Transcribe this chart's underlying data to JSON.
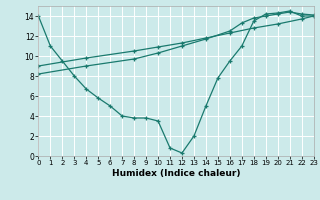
{
  "xlabel": "Humidex (Indice chaleur)",
  "xlim": [
    0,
    23
  ],
  "ylim": [
    0,
    15
  ],
  "xticks": [
    0,
    1,
    2,
    3,
    4,
    5,
    6,
    7,
    8,
    9,
    10,
    11,
    12,
    13,
    14,
    15,
    16,
    17,
    18,
    19,
    20,
    21,
    22,
    23
  ],
  "yticks": [
    0,
    2,
    4,
    6,
    8,
    10,
    12,
    14
  ],
  "bg_color": "#cceaea",
  "line_color": "#1a7a6e",
  "grid_color": "#ffffff",
  "line1_x": [
    0,
    1,
    2,
    3,
    4,
    5,
    6,
    7,
    8,
    9,
    10,
    11,
    12,
    13,
    14,
    15,
    16,
    17,
    18,
    19,
    20,
    21,
    22,
    23
  ],
  "line1_y": [
    14.0,
    11.0,
    9.5,
    8.0,
    6.7,
    5.8,
    5.0,
    4.0,
    3.8,
    3.8,
    3.5,
    0.8,
    0.3,
    2.0,
    5.0,
    7.8,
    9.5,
    11.0,
    13.5,
    14.2,
    14.3,
    14.5,
    14.0,
    14.0
  ],
  "line2_x": [
    0,
    4,
    8,
    10,
    12,
    14,
    16,
    17,
    18,
    19,
    20,
    21,
    22,
    23
  ],
  "line2_y": [
    8.2,
    9.0,
    9.7,
    10.3,
    11.0,
    11.7,
    12.5,
    13.3,
    13.8,
    14.0,
    14.2,
    14.4,
    14.2,
    14.1
  ],
  "line3_x": [
    0,
    4,
    8,
    10,
    12,
    14,
    16,
    18,
    20,
    22,
    23
  ],
  "line3_y": [
    9.0,
    9.8,
    10.5,
    10.9,
    11.3,
    11.8,
    12.3,
    12.8,
    13.2,
    13.7,
    14.0
  ]
}
